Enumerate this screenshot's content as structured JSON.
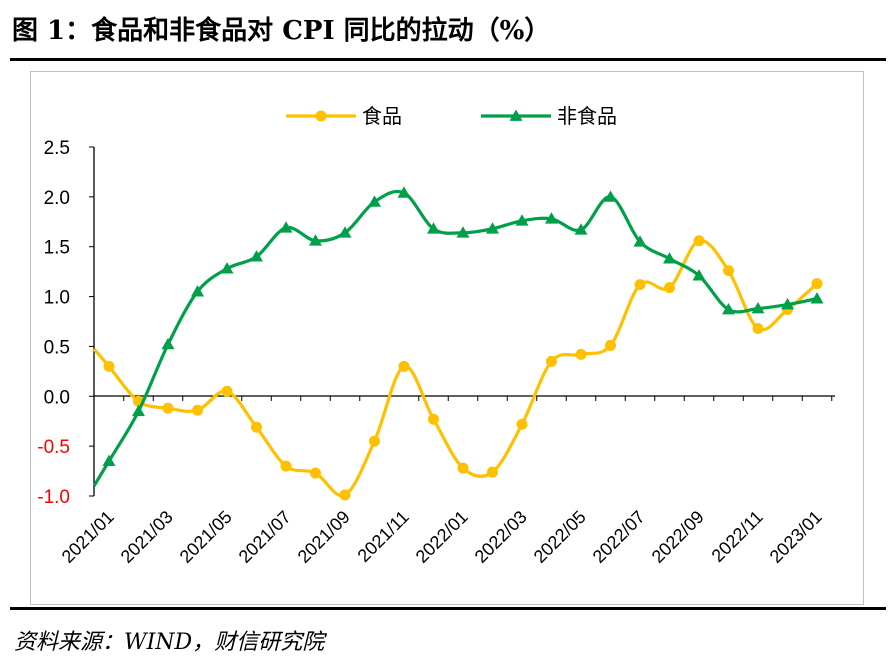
{
  "figure": {
    "title": "图 1：食品和非食品对 CPI 同比的拉动（%）",
    "source": "资料来源：WIND，财信研究院"
  },
  "chart_data": {
    "type": "line",
    "x": [
      "2021/01",
      "2021/02",
      "2021/03",
      "2021/04",
      "2021/05",
      "2021/06",
      "2021/07",
      "2021/08",
      "2021/09",
      "2021/10",
      "2021/11",
      "2021/12",
      "2022/01",
      "2022/02",
      "2022/03",
      "2022/04",
      "2022/05",
      "2022/06",
      "2022/07",
      "2022/08",
      "2022/09",
      "2022/10",
      "2022/11",
      "2022/12",
      "2023/01"
    ],
    "x_tick_labels": [
      "2021/01",
      "2021/03",
      "2021/05",
      "2021/07",
      "2021/09",
      "2021/11",
      "2022/01",
      "2022/03",
      "2022/05",
      "2022/07",
      "2022/09",
      "2022/11",
      "2023/01"
    ],
    "y_ticks": [
      "2.5",
      "2.0",
      "1.5",
      "1.0",
      "0.5",
      "0.0",
      "-0.5",
      "-1.0"
    ],
    "ylim": [
      -1.0,
      2.5
    ],
    "legend_position": "top-center",
    "grid": false,
    "series": [
      {
        "name": "食品",
        "color": "#FFC000",
        "marker": "circle",
        "values": [
          0.3,
          -0.05,
          -0.12,
          -0.14,
          0.05,
          -0.31,
          -0.7,
          -0.77,
          -0.99,
          -0.45,
          0.3,
          -0.23,
          -0.72,
          -0.76,
          -0.28,
          0.35,
          0.42,
          0.51,
          1.12,
          1.09,
          1.56,
          1.26,
          0.68,
          0.87,
          1.13
        ]
      },
      {
        "name": "非食品",
        "color": "#00A04A",
        "marker": "triangle",
        "values": [
          -0.65,
          -0.15,
          0.52,
          1.05,
          1.28,
          1.4,
          1.69,
          1.56,
          1.64,
          1.95,
          2.04,
          1.68,
          1.64,
          1.68,
          1.76,
          1.78,
          1.67,
          2.0,
          1.55,
          1.38,
          1.21,
          0.87,
          0.88,
          0.92,
          0.98
        ]
      }
    ]
  }
}
